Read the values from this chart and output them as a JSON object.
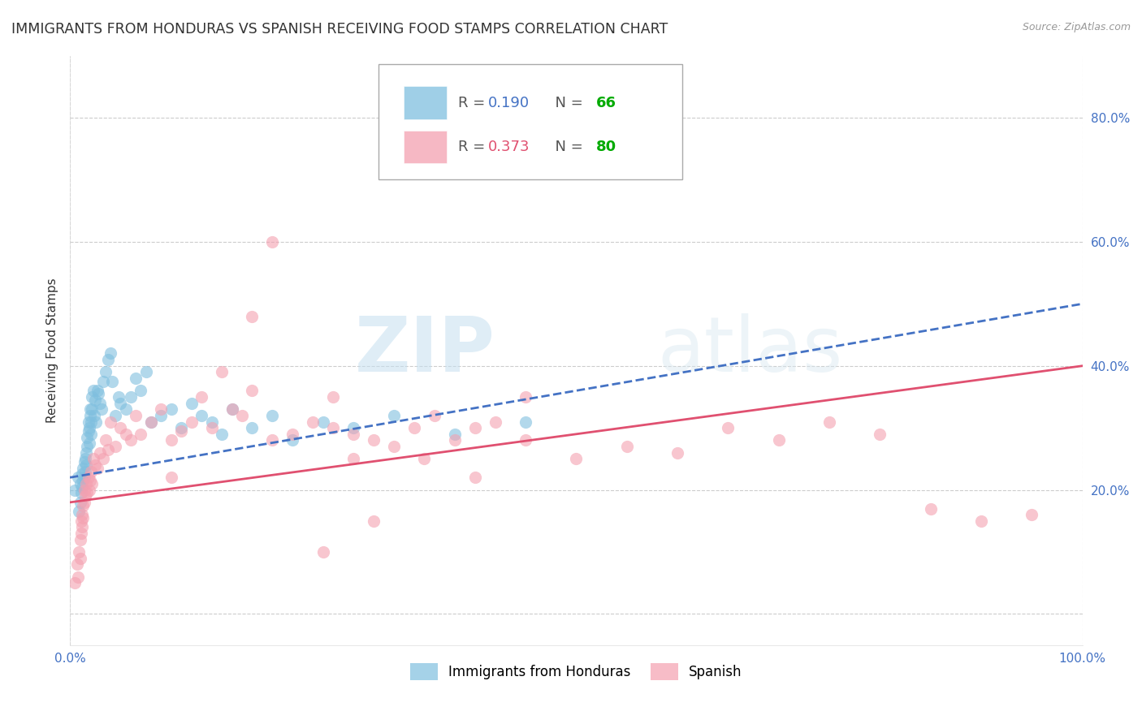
{
  "title": "IMMIGRANTS FROM HONDURAS VS SPANISH RECEIVING FOOD STAMPS CORRELATION CHART",
  "source": "Source: ZipAtlas.com",
  "ylabel": "Receiving Food Stamps",
  "yticks": [
    0.0,
    0.2,
    0.4,
    0.6,
    0.8
  ],
  "ytick_labels": [
    "",
    "20.0%",
    "40.0%",
    "60.0%",
    "80.0%"
  ],
  "xlim": [
    0.0,
    1.0
  ],
  "ylim": [
    -0.05,
    0.9
  ],
  "legend_r1": "0.190",
  "legend_n1": "66",
  "legend_r2": "0.373",
  "legend_n2": "80",
  "series1_color": "#7fbfdf",
  "series2_color": "#f4a0b0",
  "trend1_color": "#4472c4",
  "trend2_color": "#e05070",
  "watermark_zip": "ZIP",
  "watermark_atlas": "atlas",
  "background_color": "#ffffff",
  "grid_color": "#cccccc",
  "title_fontsize": 12.5,
  "axis_label_fontsize": 11,
  "tick_label_color": "#4472c4",
  "series1_x": [
    0.005,
    0.008,
    0.009,
    0.01,
    0.01,
    0.011,
    0.012,
    0.012,
    0.013,
    0.013,
    0.014,
    0.014,
    0.015,
    0.015,
    0.016,
    0.016,
    0.017,
    0.017,
    0.018,
    0.018,
    0.019,
    0.019,
    0.02,
    0.02,
    0.021,
    0.021,
    0.022,
    0.022,
    0.023,
    0.024,
    0.025,
    0.026,
    0.027,
    0.028,
    0.03,
    0.031,
    0.033,
    0.035,
    0.038,
    0.04,
    0.042,
    0.045,
    0.048,
    0.05,
    0.055,
    0.06,
    0.065,
    0.07,
    0.075,
    0.08,
    0.09,
    0.1,
    0.11,
    0.12,
    0.13,
    0.14,
    0.15,
    0.16,
    0.18,
    0.2,
    0.22,
    0.25,
    0.28,
    0.32,
    0.38,
    0.45
  ],
  "series1_y": [
    0.2,
    0.22,
    0.165,
    0.18,
    0.21,
    0.195,
    0.225,
    0.205,
    0.215,
    0.235,
    0.245,
    0.22,
    0.23,
    0.25,
    0.24,
    0.26,
    0.27,
    0.285,
    0.295,
    0.31,
    0.275,
    0.3,
    0.32,
    0.33,
    0.29,
    0.31,
    0.33,
    0.35,
    0.36,
    0.32,
    0.345,
    0.31,
    0.36,
    0.355,
    0.34,
    0.33,
    0.375,
    0.39,
    0.41,
    0.42,
    0.375,
    0.32,
    0.35,
    0.34,
    0.33,
    0.35,
    0.38,
    0.36,
    0.39,
    0.31,
    0.32,
    0.33,
    0.3,
    0.34,
    0.32,
    0.31,
    0.29,
    0.33,
    0.3,
    0.32,
    0.28,
    0.31,
    0.3,
    0.32,
    0.29,
    0.31
  ],
  "series2_x": [
    0.005,
    0.007,
    0.008,
    0.009,
    0.01,
    0.01,
    0.011,
    0.011,
    0.012,
    0.012,
    0.013,
    0.013,
    0.014,
    0.014,
    0.015,
    0.016,
    0.017,
    0.018,
    0.019,
    0.02,
    0.021,
    0.022,
    0.023,
    0.025,
    0.027,
    0.03,
    0.033,
    0.035,
    0.038,
    0.04,
    0.045,
    0.05,
    0.055,
    0.06,
    0.065,
    0.07,
    0.08,
    0.09,
    0.1,
    0.11,
    0.12,
    0.13,
    0.14,
    0.15,
    0.16,
    0.17,
    0.18,
    0.2,
    0.22,
    0.24,
    0.26,
    0.28,
    0.3,
    0.32,
    0.34,
    0.36,
    0.38,
    0.4,
    0.42,
    0.45,
    0.5,
    0.55,
    0.6,
    0.65,
    0.7,
    0.75,
    0.8,
    0.85,
    0.9,
    0.95,
    0.18,
    0.26,
    0.3,
    0.35,
    0.4,
    0.45,
    0.1,
    0.2,
    0.25,
    0.28
  ],
  "series2_y": [
    0.05,
    0.08,
    0.06,
    0.1,
    0.12,
    0.09,
    0.15,
    0.13,
    0.16,
    0.14,
    0.175,
    0.155,
    0.18,
    0.2,
    0.19,
    0.21,
    0.195,
    0.22,
    0.2,
    0.215,
    0.23,
    0.21,
    0.25,
    0.24,
    0.235,
    0.26,
    0.25,
    0.28,
    0.265,
    0.31,
    0.27,
    0.3,
    0.29,
    0.28,
    0.32,
    0.29,
    0.31,
    0.33,
    0.28,
    0.295,
    0.31,
    0.35,
    0.3,
    0.39,
    0.33,
    0.32,
    0.36,
    0.28,
    0.29,
    0.31,
    0.3,
    0.29,
    0.28,
    0.27,
    0.3,
    0.32,
    0.28,
    0.3,
    0.31,
    0.35,
    0.25,
    0.27,
    0.26,
    0.3,
    0.28,
    0.31,
    0.29,
    0.17,
    0.15,
    0.16,
    0.48,
    0.35,
    0.15,
    0.25,
    0.22,
    0.28,
    0.22,
    0.6,
    0.1,
    0.25
  ],
  "trend1_start_y": 0.22,
  "trend1_end_y": 0.5,
  "trend2_start_y": 0.18,
  "trend2_end_y": 0.4
}
